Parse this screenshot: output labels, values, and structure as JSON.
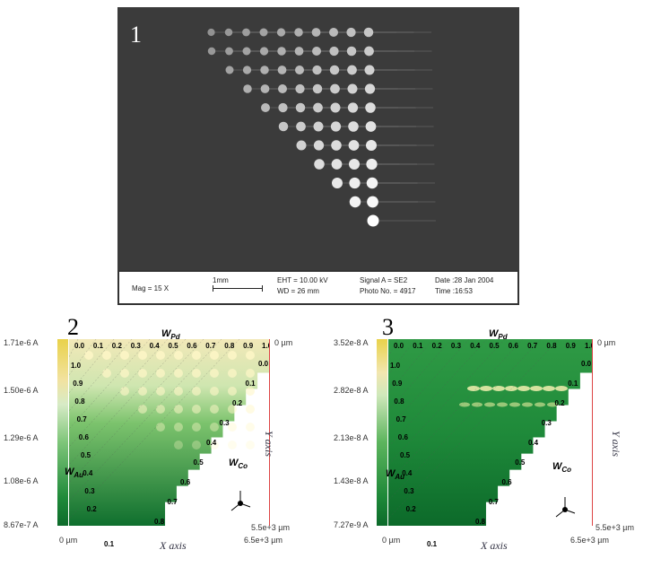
{
  "panel1": {
    "label": "1",
    "info": {
      "mag": "Mag =   15 X",
      "scale": "1mm",
      "eht": "EHT = 10.00 kV",
      "wd": "WD =  26 mm",
      "signal": "Signal A = SE2",
      "photo": "Photo No. = 4917",
      "date": "Date :28 Jan 2004",
      "time": "Time :16:53"
    }
  },
  "panel2": {
    "label": "2",
    "cbar_max": "1.71e-6 A",
    "cbar_t1": "1.50e-6 A",
    "cbar_t2": "1.29e-6 A",
    "cbar_t3": "1.08e-6 A",
    "cbar_min": "8.67e-7 A",
    "wpd": "W",
    "wpd_sub": "Pd",
    "wau": "W",
    "wau_sub": "Au",
    "wco": "W",
    "wco_sub": "Co",
    "y_top": "0 µm",
    "y_bottom": "5.5e+3 µm",
    "x_left": "0 µm",
    "x_right": "6.5e+3 µm",
    "x_axis": "X axis",
    "y_axis": "Y axis",
    "top_ticks": [
      "0.0",
      "0.1",
      "0.2",
      "0.3",
      "0.4",
      "0.5",
      "0.6",
      "0.7",
      "0.8",
      "0.9",
      "1.0"
    ],
    "left_ticks": [
      "1.0",
      "0.9",
      "0.8",
      "0.7",
      "0.6",
      "0.5",
      "0.4",
      "0.3",
      "0.2",
      "0.1"
    ],
    "diag_ticks": [
      "0.0",
      "0.1",
      "0.2",
      "0.3",
      "0.4",
      "0.5",
      "0.6",
      "0.7",
      "0.8"
    ]
  },
  "panel3": {
    "label": "3",
    "cbar_max": "3.52e-8 A",
    "cbar_t1": "2.82e-8 A",
    "cbar_t2": "2.13e-8 A",
    "cbar_t3": "1.43e-8 A",
    "cbar_min": "7.27e-9 A",
    "wpd": "W",
    "wpd_sub": "Pd",
    "wau": "W",
    "wau_sub": "Au",
    "wco": "W",
    "wco_sub": "Co",
    "y_top": "0 µm",
    "y_bottom": "5.5e+3 µm",
    "x_left": "0 µm",
    "x_right": "6.5e+3 µm",
    "x_axis": "X axis",
    "y_axis": "Y axis",
    "top_ticks": [
      "0.0",
      "0.1",
      "0.2",
      "0.3",
      "0.4",
      "0.5",
      "0.6",
      "0.7",
      "0.8",
      "0.9",
      "1.0"
    ],
    "left_ticks": [
      "1.0",
      "0.9",
      "0.8",
      "0.7",
      "0.6",
      "0.5",
      "0.4",
      "0.3",
      "0.2",
      "0.1"
    ],
    "diag_ticks": [
      "0.0",
      "0.1",
      "0.2",
      "0.3",
      "0.4",
      "0.5",
      "0.6",
      "0.7",
      "0.8"
    ]
  }
}
